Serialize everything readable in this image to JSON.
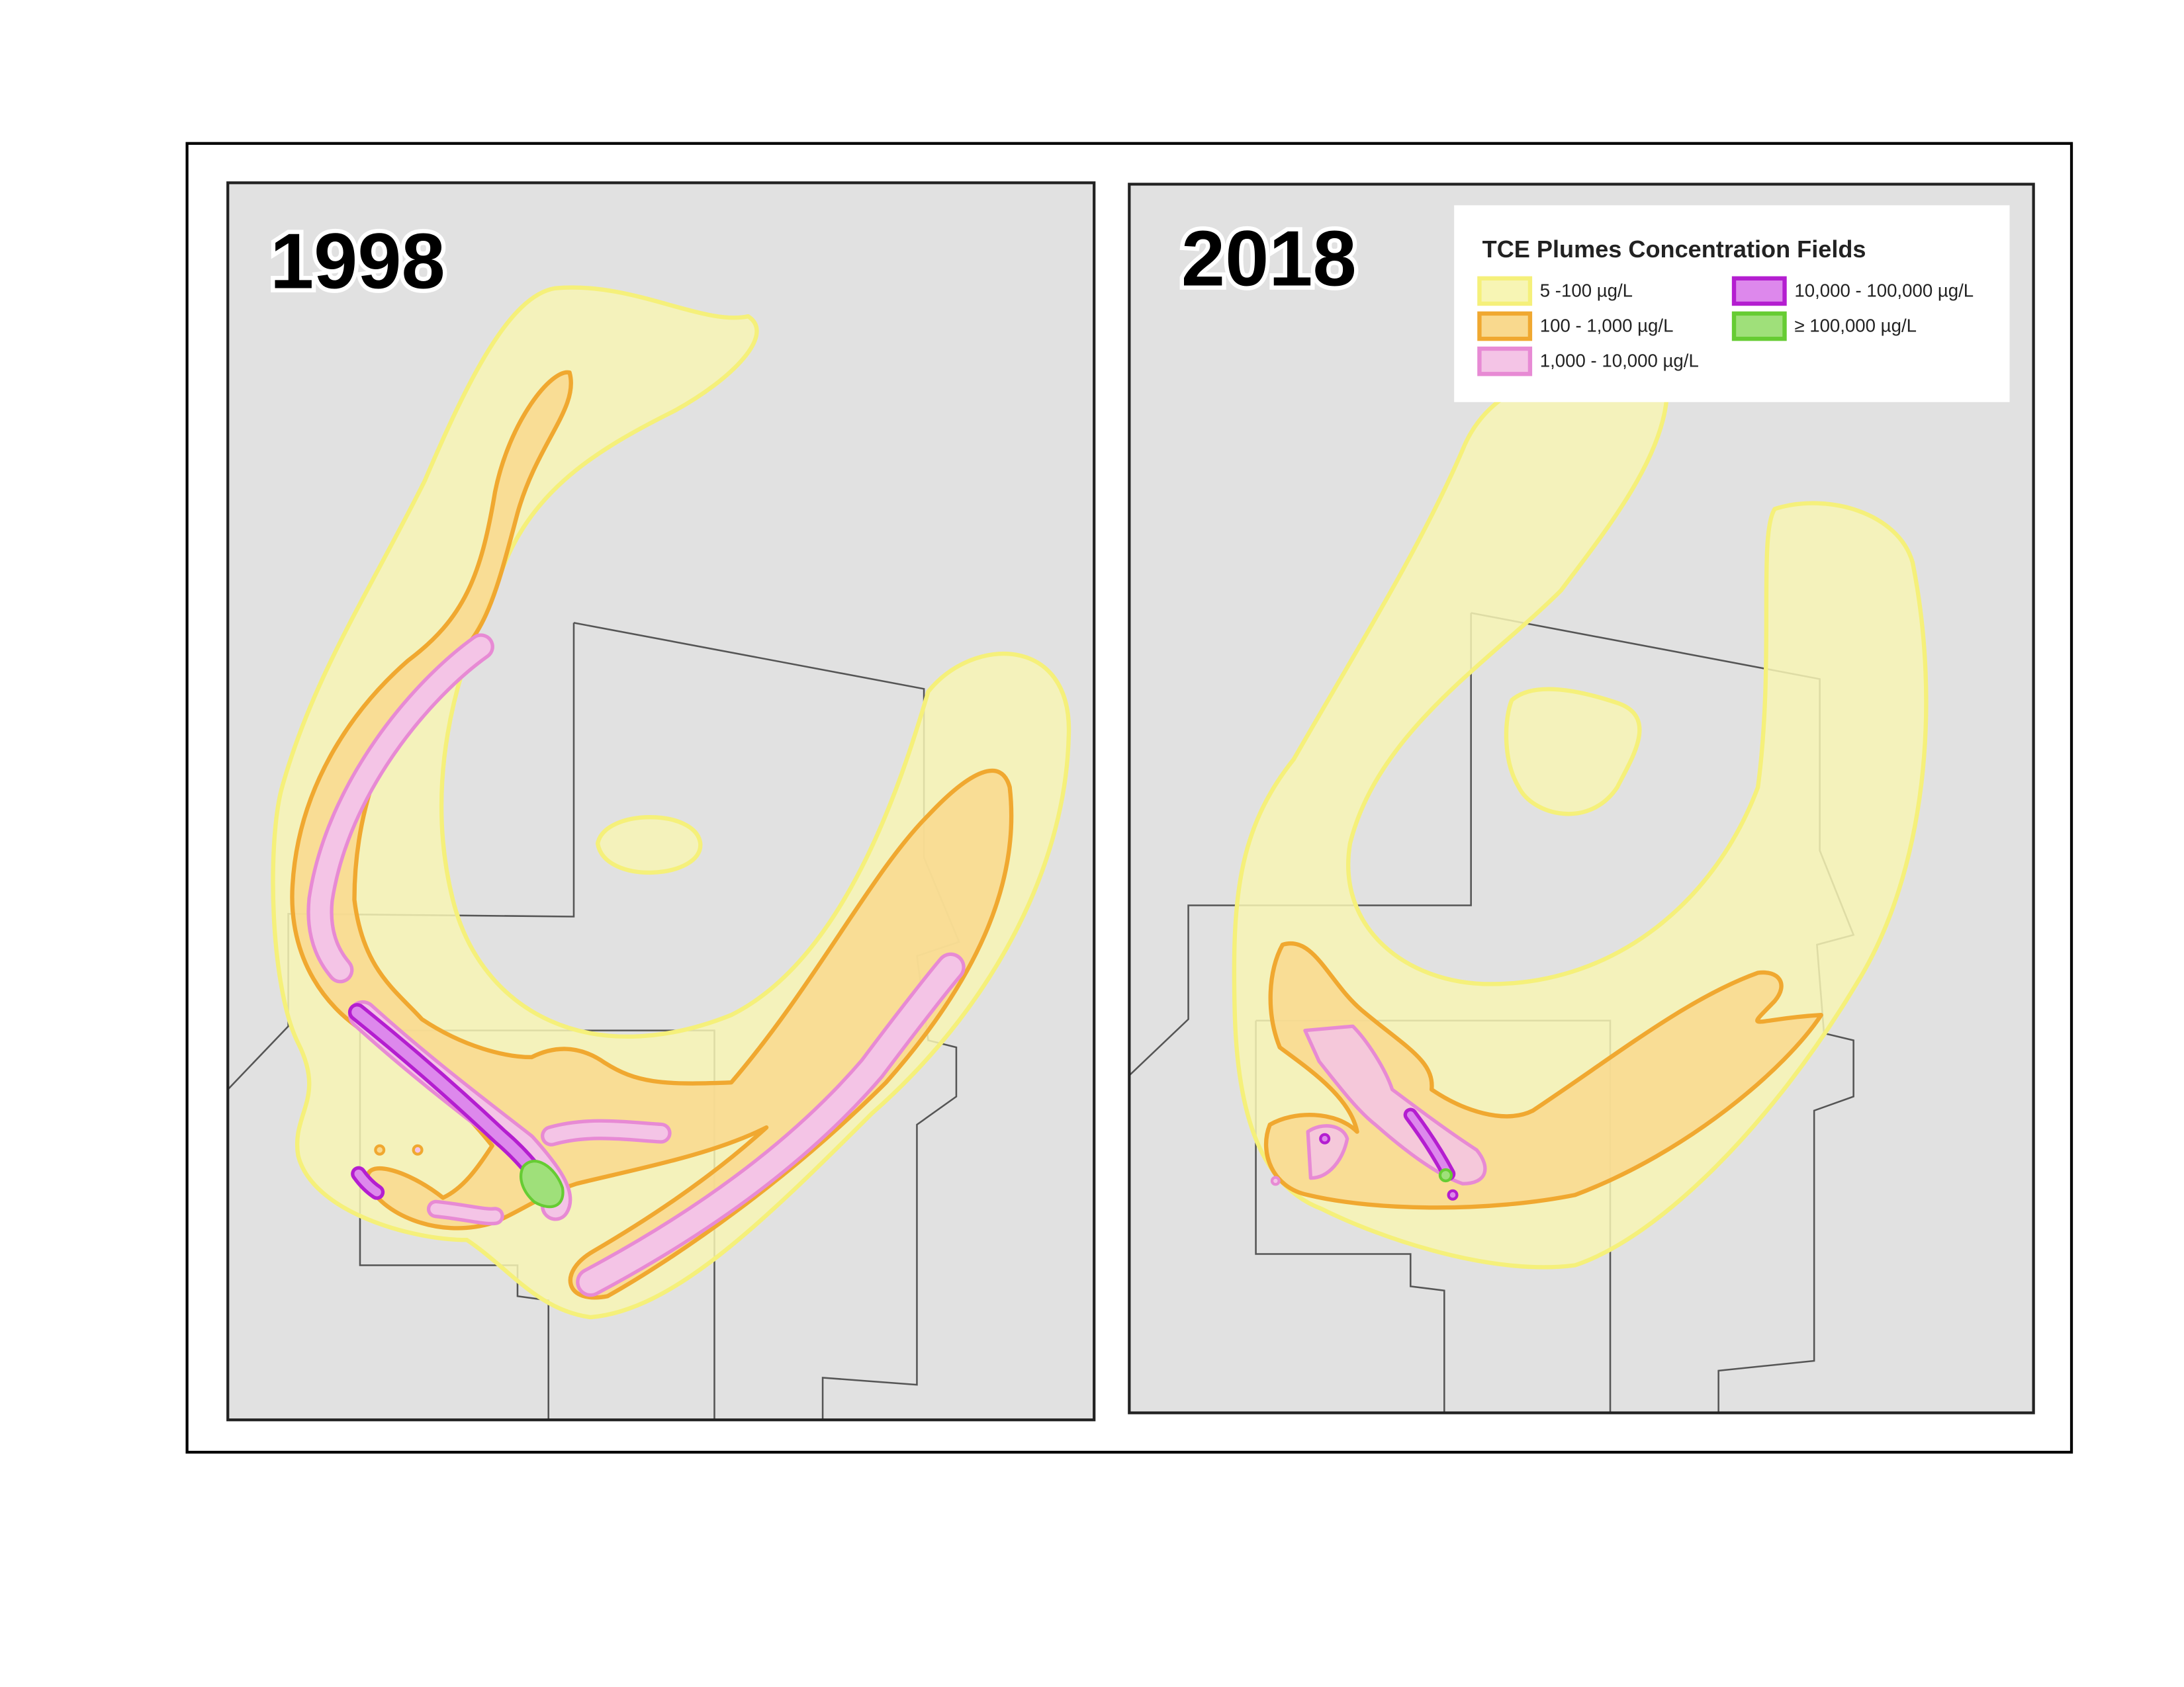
{
  "panels": [
    {
      "label": "1998"
    },
    {
      "label": "2018"
    }
  ],
  "legend": {
    "title": "TCE Plumes Concentration Fields",
    "items": [
      {
        "label": "5 -100 µg/L",
        "color": "#f7f5b4",
        "edge": "#f5f07a"
      },
      {
        "label": "100 - 1,000 µg/L",
        "color": "#f9d98e",
        "edge": "#f0a830"
      },
      {
        "label": "1,000 - 10,000 µg/L",
        "color": "#f4c4e6",
        "edge": "#e78ad4"
      },
      {
        "label": "10,000 - 100,000 µg/L",
        "color": "#dd88ec",
        "edge": "#b41ed0"
      },
      {
        "label": "≥ 100,000 µg/L",
        "color": "#9fe07a",
        "edge": "#66cc33"
      }
    ]
  }
}
